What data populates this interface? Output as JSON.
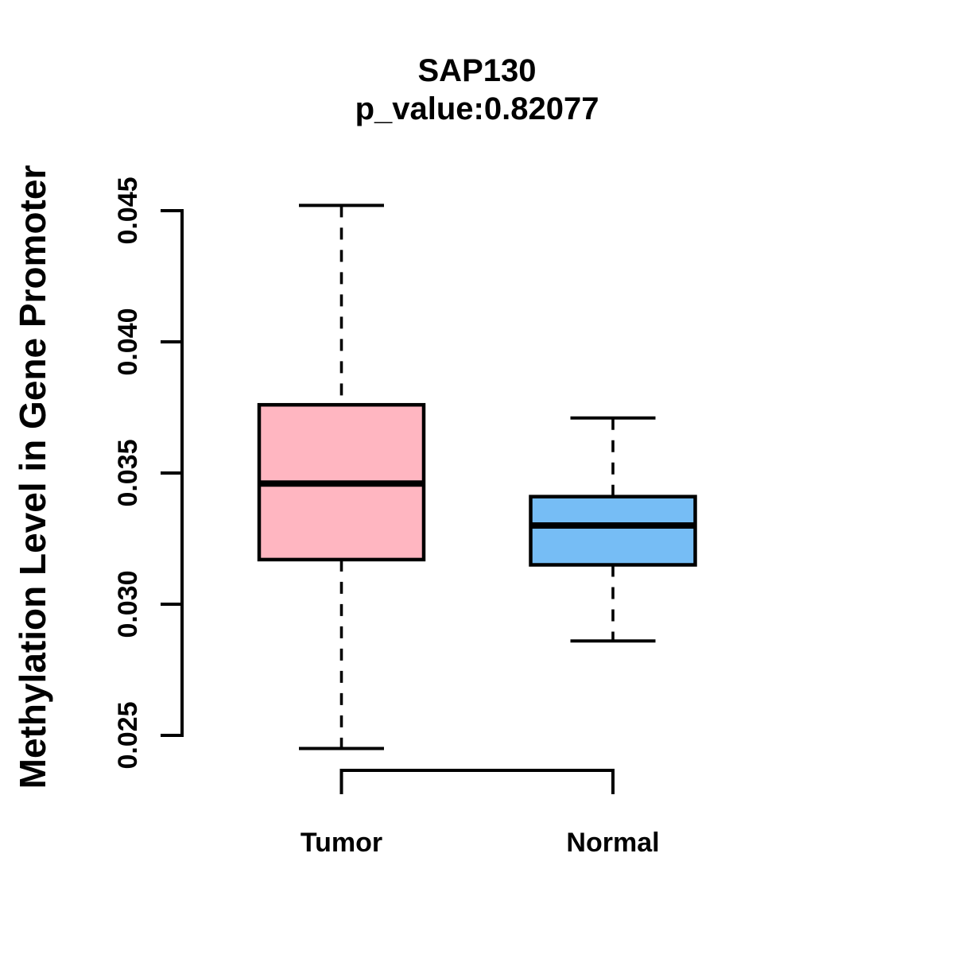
{
  "chart_data": {
    "type": "boxplot",
    "title": "SAP130",
    "subtitle": "p_value:0.82077",
    "ylabel": "Methylation Level in Gene Promoter",
    "xlabel": "",
    "categories": [
      "Tumor",
      "Normal"
    ],
    "ylim": [
      0.025,
      0.045
    ],
    "yticks": [
      0.025,
      0.03,
      0.035,
      0.04,
      0.045
    ],
    "ytick_labels": [
      "0.025",
      "0.030",
      "0.035",
      "0.040",
      "0.045"
    ],
    "grid": false,
    "legend": "none",
    "whisker_line_style": "dashed",
    "outline_color": "#000000",
    "background_color": "#FFFFFF",
    "series": [
      {
        "name": "Tumor",
        "whisker_low": 0.0245,
        "q1": 0.0317,
        "median": 0.0346,
        "q3": 0.0376,
        "whisker_high": 0.0452,
        "fill_color": "#FFB6C1"
      },
      {
        "name": "Normal",
        "whisker_low": 0.0286,
        "q1": 0.0315,
        "median": 0.033,
        "q3": 0.0341,
        "whisker_high": 0.0371,
        "fill_color": "#76BDF5"
      }
    ]
  }
}
